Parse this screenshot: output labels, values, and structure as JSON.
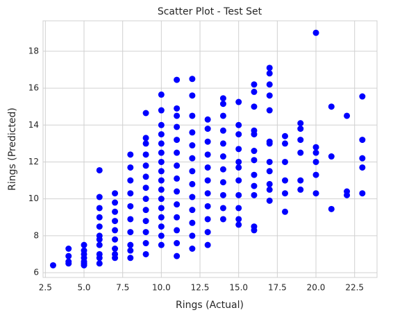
{
  "chart_data": {
    "type": "scatter",
    "title": "Scatter Plot - Test Set",
    "x_label": "Rings (Actual)",
    "y_label": "Rings (Predicted)",
    "color": "#0000ff",
    "grid": true,
    "xlim": [
      2.35,
      23.95
    ],
    "ylim": [
      5.74,
      19.65
    ],
    "xticks": [
      2.5,
      {
        "value": 5,
        "label": "5.0"
      },
      7.5,
      {
        "value": 10,
        "label": "10.0"
      },
      12.5,
      {
        "value": 15,
        "label": "15.0"
      },
      17.5,
      {
        "value": 20,
        "label": "20.0"
      },
      22.5
    ],
    "yticks": [
      6,
      8,
      10,
      12,
      14,
      16,
      18
    ],
    "x": [
      3,
      4,
      4,
      4,
      4,
      5,
      5,
      5,
      5,
      5,
      5,
      5,
      6,
      6,
      6,
      6,
      6,
      6,
      6,
      6,
      6,
      6,
      6,
      7,
      7,
      7,
      7,
      7,
      7,
      7,
      7,
      7,
      8,
      8,
      8,
      8,
      8,
      8,
      8,
      8,
      8,
      8,
      9,
      9,
      9,
      9,
      9,
      9,
      9,
      9,
      9,
      9,
      9,
      9,
      9,
      10,
      10,
      10,
      10,
      10,
      10,
      10,
      10,
      10,
      10,
      10,
      10,
      10,
      10,
      10,
      10,
      11,
      11,
      11,
      11,
      11,
      11,
      11,
      11,
      11,
      11,
      11,
      11,
      11,
      11,
      12,
      12,
      12,
      12,
      12,
      12,
      12,
      12,
      12,
      12,
      12,
      12,
      12,
      13,
      13,
      13,
      13,
      13,
      13,
      13,
      13,
      13,
      13,
      13,
      14,
      14,
      14,
      14,
      14,
      14,
      14,
      14,
      14,
      14,
      14,
      15,
      15,
      15,
      15,
      15,
      15,
      15,
      15,
      15,
      15,
      15,
      16,
      16,
      16,
      16,
      16,
      16,
      16,
      16,
      16,
      16,
      16,
      16,
      17,
      17,
      17,
      17,
      17,
      17,
      17,
      17,
      17,
      17,
      17,
      17,
      18,
      18,
      18,
      18,
      18,
      18,
      19,
      19,
      19,
      19,
      19,
      19,
      20,
      20,
      20,
      20,
      20,
      20,
      21,
      21,
      21,
      22,
      22,
      22,
      23,
      23,
      23,
      23,
      23
    ],
    "values": [
      6.4,
      6.5,
      6.9,
      7.3,
      6.6,
      6.4,
      6.6,
      6.8,
      7.0,
      7.2,
      7.5,
      6.5,
      6.5,
      7.0,
      7.5,
      8.0,
      8.5,
      9.0,
      9.5,
      10.1,
      11.55,
      6.8,
      7.8,
      6.8,
      7.3,
      7.8,
      8.3,
      8.8,
      9.3,
      9.8,
      10.3,
      7.0,
      6.8,
      7.5,
      8.2,
      8.9,
      9.6,
      10.3,
      11.0,
      11.7,
      12.4,
      7.2,
      7.0,
      7.6,
      8.2,
      8.8,
      9.4,
      10.0,
      10.6,
      11.2,
      11.8,
      12.4,
      13.0,
      13.3,
      14.65,
      7.5,
      8.0,
      8.5,
      9.0,
      9.5,
      10.0,
      10.5,
      11.0,
      11.5,
      12.0,
      12.5,
      13.0,
      13.5,
      14.0,
      14.8,
      15.65,
      6.9,
      7.6,
      8.3,
      9.0,
      9.7,
      10.4,
      11.1,
      11.8,
      12.5,
      13.2,
      13.9,
      14.5,
      14.9,
      16.45,
      7.3,
      8.0,
      8.7,
      9.4,
      10.1,
      10.8,
      11.5,
      12.2,
      12.9,
      13.6,
      14.5,
      15.6,
      16.5,
      7.5,
      8.2,
      8.9,
      9.6,
      10.3,
      11.0,
      11.7,
      12.4,
      13.1,
      13.8,
      14.3,
      8.9,
      9.5,
      10.2,
      10.9,
      11.6,
      12.3,
      13.0,
      13.7,
      14.5,
      15.15,
      15.45,
      8.6,
      8.9,
      9.5,
      10.2,
      11.0,
      11.7,
      12.0,
      12.7,
      13.5,
      14.0,
      15.25,
      8.3,
      8.5,
      10.2,
      10.7,
      11.3,
      12.1,
      12.6,
      13.5,
      13.7,
      15.0,
      15.8,
      16.2,
      9.9,
      10.5,
      10.8,
      11.5,
      12.0,
      13.0,
      13.1,
      14.8,
      15.6,
      16.2,
      16.8,
      17.1,
      9.3,
      10.3,
      11.0,
      12.0,
      13.0,
      13.4,
      10.5,
      11.0,
      12.5,
      13.2,
      13.8,
      14.1,
      10.3,
      11.3,
      12.0,
      12.5,
      12.8,
      19.0,
      9.45,
      12.3,
      15.0,
      10.2,
      10.4,
      14.5,
      10.3,
      11.7,
      12.2,
      13.2,
      15.55
    ]
  }
}
